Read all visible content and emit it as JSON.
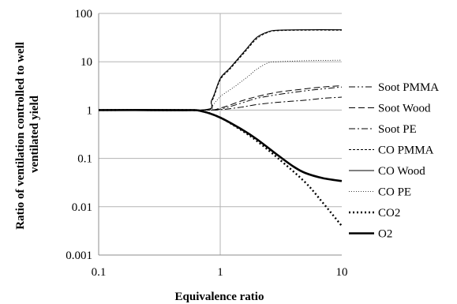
{
  "chart_data": {
    "type": "line",
    "x_scale": "log",
    "y_scale": "log",
    "xlim": [
      0.1,
      10
    ],
    "ylim": [
      0.001,
      100
    ],
    "xlabel": "Equivalence ratio",
    "ylabel": "Ratio of ventilation controlled to well ventilated yield",
    "ylabel_lines": [
      "Ratio of ventilation controlled to well",
      "ventilated yield"
    ],
    "x_ticks": [
      0.1,
      1,
      10
    ],
    "x_tick_labels": [
      "0.1",
      "1",
      "10"
    ],
    "y_ticks": [
      0.001,
      0.01,
      0.1,
      1,
      10,
      100
    ],
    "y_tick_labels": [
      "0.001",
      "0.01",
      "0.1",
      "1",
      "10",
      "100"
    ],
    "grid": "horizontal lines at each decade, vertical line at x = 1",
    "legend_position": "right",
    "series": [
      {
        "name": "Soot PMMA",
        "style": "dash-dot-dot",
        "x": [
          0.1,
          0.7,
          1,
          1.5,
          2,
          3,
          5,
          7,
          10
        ],
        "y": [
          1,
          1,
          1.05,
          1.4,
          1.75,
          2.1,
          2.5,
          2.75,
          3.0
        ]
      },
      {
        "name": "Soot Wood",
        "style": "long-dash",
        "x": [
          0.1,
          0.7,
          1,
          1.5,
          2,
          3,
          5,
          7,
          10
        ],
        "y": [
          1,
          1,
          1.1,
          1.55,
          1.9,
          2.35,
          2.75,
          3.0,
          3.2
        ]
      },
      {
        "name": "Soot PE",
        "style": "dash-dot",
        "x": [
          0.1,
          0.7,
          1,
          1.5,
          2,
          3,
          5,
          7,
          10
        ],
        "y": [
          1,
          1,
          1.02,
          1.15,
          1.3,
          1.45,
          1.6,
          1.75,
          1.85
        ]
      },
      {
        "name": "CO PMMA",
        "style": "short-dash",
        "x": [
          0.1,
          0.7,
          0.85,
          1,
          1.2,
          1.6,
          2,
          2.5,
          3,
          5,
          10
        ],
        "y": [
          1,
          1,
          1.5,
          4.2,
          7.0,
          16,
          30,
          41,
          44,
          45,
          45
        ]
      },
      {
        "name": "CO Wood",
        "style": "solid-thin",
        "x": [
          0.1,
          0.7,
          0.85,
          1,
          1.2,
          1.6,
          2,
          2.5,
          3,
          5,
          10
        ],
        "y": [
          1,
          1,
          1.6,
          4.5,
          7.4,
          17,
          32,
          42,
          45,
          46,
          46
        ]
      },
      {
        "name": "CO PE",
        "style": "dotted-thin",
        "x": [
          0.1,
          0.7,
          0.85,
          1,
          1.3,
          1.7,
          2,
          2.5,
          3,
          5,
          10
        ],
        "y": [
          1,
          1,
          1.2,
          1.9,
          3.0,
          5.0,
          7.0,
          9.6,
          10,
          10.5,
          10.8
        ]
      },
      {
        "name": "CO2",
        "style": "dotted-thick",
        "x": [
          0.1,
          0.5,
          0.7,
          1,
          1.5,
          2,
          3,
          5,
          7,
          10
        ],
        "y": [
          1,
          1,
          0.95,
          0.7,
          0.38,
          0.23,
          0.1,
          0.032,
          0.012,
          0.004
        ]
      },
      {
        "name": "O2",
        "style": "solid-thick",
        "x": [
          0.1,
          0.5,
          0.7,
          1,
          1.5,
          2,
          3,
          4,
          5,
          7,
          10
        ],
        "y": [
          1,
          1,
          0.95,
          0.7,
          0.4,
          0.25,
          0.115,
          0.068,
          0.05,
          0.039,
          0.034
        ]
      }
    ]
  }
}
